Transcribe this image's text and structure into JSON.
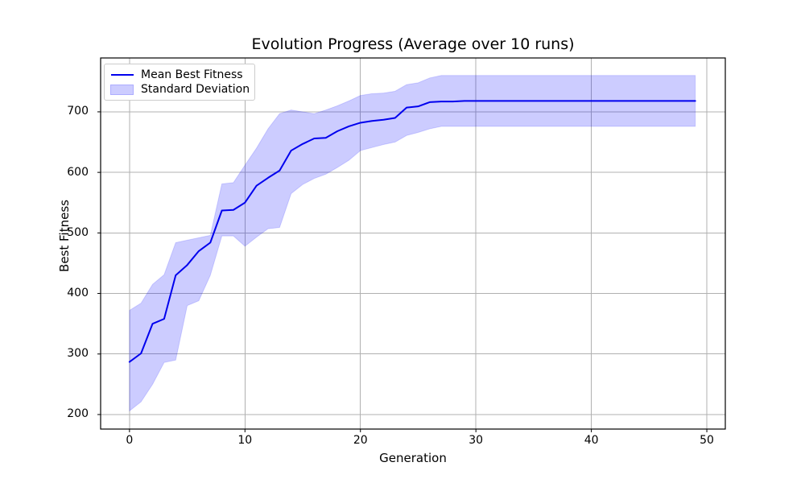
{
  "chart_data": {
    "type": "line",
    "title": "Evolution Progress (Average over 10 runs)",
    "xlabel": "Generation",
    "ylabel": "Best Fitness",
    "grid": true,
    "legend_position": "upper left",
    "xlim": [
      -2.5,
      51.6
    ],
    "ylim": [
      176,
      789
    ],
    "xticks": [
      0,
      10,
      20,
      30,
      40,
      50
    ],
    "yticks": [
      200,
      300,
      400,
      500,
      600,
      700
    ],
    "x": [
      0,
      1,
      2,
      3,
      4,
      5,
      6,
      7,
      8,
      9,
      10,
      11,
      12,
      13,
      14,
      15,
      16,
      17,
      18,
      19,
      20,
      21,
      22,
      23,
      24,
      25,
      26,
      27,
      28,
      29,
      30,
      31,
      32,
      33,
      34,
      35,
      36,
      37,
      38,
      39,
      40,
      41,
      42,
      43,
      44,
      45,
      46,
      47,
      48,
      49
    ],
    "series": [
      {
        "name": "Mean Best Fitness",
        "kind": "line",
        "color": "#0000ee",
        "values": [
          287,
          301,
          350,
          358,
          430,
          447,
          470,
          484,
          537,
          538,
          550,
          578,
          591,
          603,
          636,
          647,
          656,
          657,
          668,
          676,
          682,
          685,
          687,
          690,
          707,
          709,
          716,
          717,
          717,
          718,
          718,
          718,
          718,
          718,
          718,
          718,
          718,
          718,
          718,
          718,
          718,
          718,
          718,
          718,
          718,
          718,
          718,
          718,
          718,
          718
        ]
      },
      {
        "name": "Standard Deviation",
        "kind": "band",
        "color": "#0000ff",
        "fill_opacity": 0.2,
        "upper": [
          372,
          384,
          415,
          431,
          484,
          488,
          492,
          496,
          581,
          583,
          612,
          640,
          672,
          697,
          703,
          700,
          697,
          703,
          710,
          718,
          727,
          730,
          731,
          734,
          745,
          748,
          756,
          760,
          760,
          760,
          760,
          760,
          760,
          760,
          760,
          760,
          760,
          760,
          760,
          760,
          760,
          760,
          760,
          760,
          760,
          760,
          760,
          760,
          760,
          760
        ],
        "lower": [
          206,
          221,
          250,
          286,
          290,
          380,
          388,
          430,
          495,
          495,
          478,
          493,
          507,
          509,
          565,
          580,
          590,
          597,
          608,
          620,
          636,
          641,
          646,
          650,
          661,
          666,
          672,
          676,
          676,
          676,
          676,
          676,
          676,
          676,
          676,
          676,
          676,
          676,
          676,
          676,
          676,
          676,
          676,
          676,
          676,
          676,
          676,
          676,
          676,
          676
        ]
      }
    ],
    "colors": {
      "grid": "#b0b0b0",
      "spine": "#000000",
      "background": "#ffffff",
      "text": "#000000"
    }
  }
}
